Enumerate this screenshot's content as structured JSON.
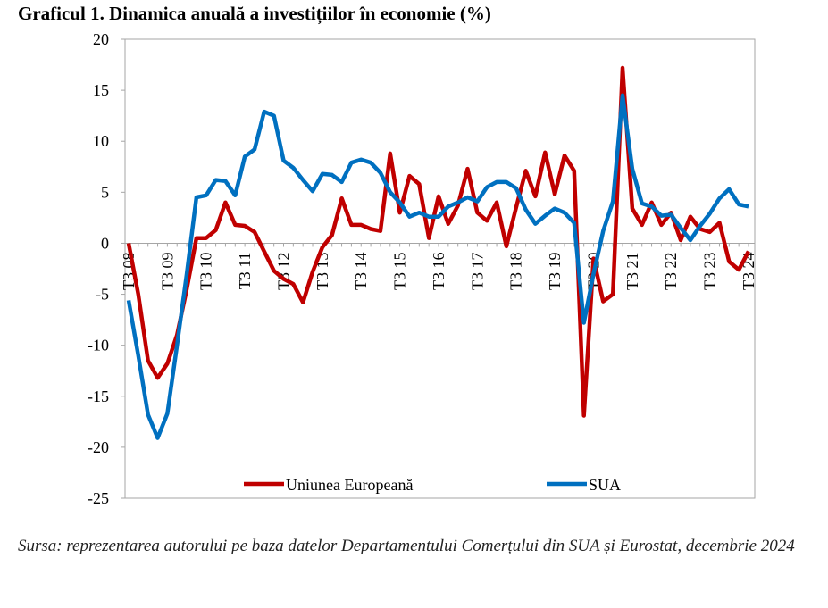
{
  "chart_data": {
    "type": "line",
    "title": "Graficul 1. Dinamica anuală a investițiilor în economie (%)",
    "source": "Sursa: reprezentarea autorului pe baza datelor Departamentului Comerțului din SUA și Eurostat, decembrie 2024",
    "categories": [
      "T3 08",
      null,
      null,
      null,
      "T3 09",
      null,
      null,
      null,
      "T3 10",
      null,
      null,
      null,
      "T3 11",
      null,
      null,
      null,
      "T3 12",
      null,
      null,
      null,
      "T3 13",
      null,
      null,
      null,
      "T3 14",
      null,
      null,
      null,
      "T3 15",
      null,
      null,
      null,
      "T3 16",
      null,
      null,
      null,
      "T3 17",
      null,
      null,
      null,
      "T3 18",
      null,
      null,
      null,
      "T3 19",
      null,
      null,
      null,
      "T3 20",
      null,
      null,
      null,
      "T3 21",
      null,
      null,
      null,
      "T3 22",
      null,
      null,
      null,
      "T3 23",
      null,
      null,
      null,
      "T3 24"
    ],
    "series": [
      {
        "name": "Uniunea Europeană",
        "color": "#c00000",
        "values": [
          0,
          -5,
          -11.5,
          -13.2,
          -11.8,
          -9,
          -4.5,
          0.5,
          0.5,
          1.3,
          4,
          1.8,
          1.7,
          1.1,
          -0.8,
          -2.7,
          -3.5,
          -4,
          -5.8,
          -2.8,
          -0.4,
          0.8,
          4.4,
          1.8,
          1.8,
          1.4,
          1.2,
          8.8,
          3,
          6.6,
          5.8,
          0.5,
          4.6,
          1.9,
          3.7,
          7.3,
          3,
          2.2,
          4,
          -0.3,
          3.5,
          7.1,
          4.6,
          8.9,
          4.8,
          8.6,
          7.1,
          -16.9,
          -1.5,
          -5.7,
          -5,
          17.2,
          3.4,
          1.8,
          4,
          1.8,
          3,
          0.3,
          2.6,
          1.4,
          1.1,
          2,
          -1.8,
          -2.6,
          -0.8
        ]
      },
      {
        "name": "SUA",
        "color": "#0070c0",
        "values": [
          -5.6,
          -11,
          -16.8,
          -19.1,
          -16.7,
          -10,
          -3,
          4.5,
          4.7,
          6.2,
          6.1,
          4.7,
          8.5,
          9.2,
          12.9,
          12.5,
          8.1,
          7.4,
          6.2,
          5.1,
          6.8,
          6.7,
          6,
          7.9,
          8.2,
          7.9,
          6.9,
          5,
          4,
          2.6,
          3,
          2.6,
          2.6,
          3.6,
          4,
          4.5,
          4.1,
          5.5,
          6,
          6,
          5.4,
          3.3,
          1.9,
          2.7,
          3.4,
          3,
          2,
          -7.8,
          -3,
          1.2,
          4.1,
          14.5,
          7.3,
          3.9,
          3.6,
          2.7,
          2.8,
          1.5,
          0.3,
          1.7,
          2.9,
          4.4,
          5.3,
          3.8,
          3.6
        ]
      }
    ],
    "ylim": [
      -25,
      20
    ],
    "yticks": [
      -25,
      -20,
      -15,
      -10,
      -5,
      0,
      5,
      10,
      15,
      20
    ],
    "legend": "bottom"
  }
}
